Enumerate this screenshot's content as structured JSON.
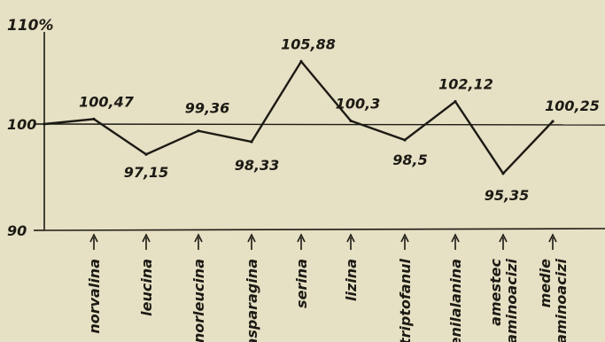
{
  "chart_data": {
    "type": "line",
    "ylabel": "110%",
    "ylim": [
      90,
      110
    ],
    "yticks": [
      "90",
      "100"
    ],
    "reference_value": 100,
    "grid": false,
    "categories": [
      "norvalina",
      "leucina",
      "norleucina",
      "asparagina",
      "serina",
      "lizina",
      "triptofanul",
      "fenilalanina",
      "amestec\naminoacizi",
      "medie\naminoacizi"
    ],
    "x": [
      "",
      "norvalina",
      "leucina",
      "norleucina",
      "asparagina",
      "serina",
      "lizina",
      "triptofanul",
      "fenilalanina",
      "amestec aminoacizi",
      "medie aminoacizi"
    ],
    "series": [
      {
        "values": [
          100,
          100.47,
          97.15,
          99.36,
          98.33,
          105.88,
          100.3,
          98.5,
          102.12,
          95.35,
          100.25
        ]
      }
    ],
    "data_labels": [
      "",
      "100,47",
      "97,15",
      "99,36",
      "98,33",
      "105,88",
      "100,3",
      "98,5",
      "102,12",
      "95,35",
      "100,25"
    ],
    "colors": {
      "background": "#e6e0c4",
      "ink": "#1c1a14"
    }
  }
}
